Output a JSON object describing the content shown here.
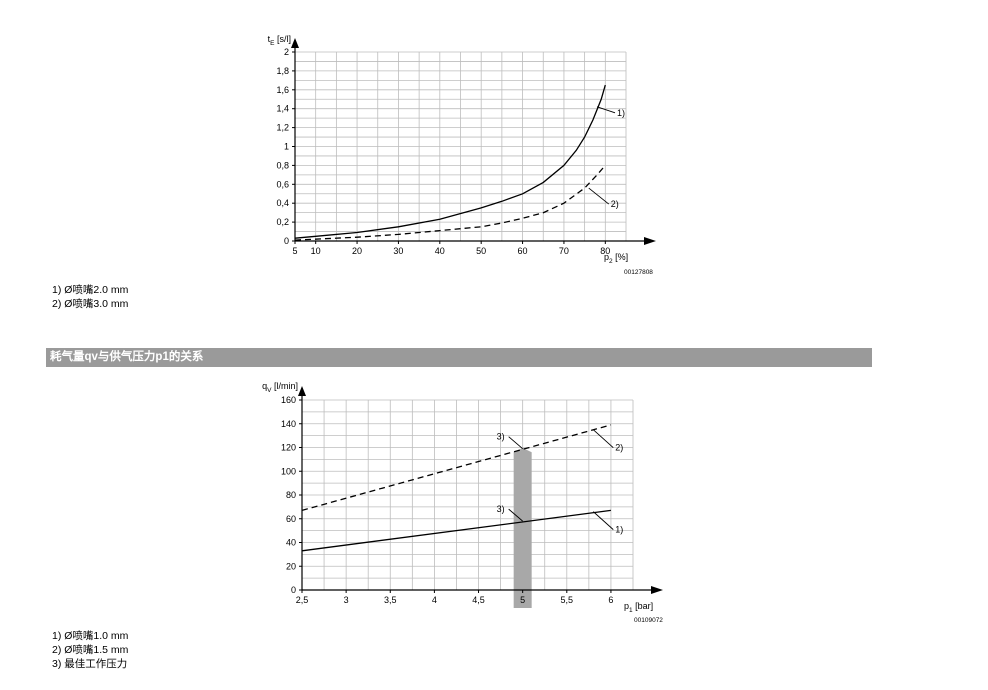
{
  "chart_data": [
    {
      "type": "line",
      "title": "",
      "ylabel_main": "t",
      "ylabel_sub": "E",
      "ylabel_unit": " [s/l]",
      "xlabel_main": "p",
      "xlabel_sub": "2",
      "xlabel_unit": " [%]",
      "ref_code": "00127808",
      "xlim": [
        5,
        85
      ],
      "ylim": [
        0,
        2
      ],
      "grid": true,
      "x_ticks": [
        5,
        10,
        20,
        30,
        40,
        50,
        60,
        70,
        80
      ],
      "y_ticks": [
        0,
        0.2,
        0.4,
        0.6,
        0.8,
        1,
        1.2,
        1.4,
        1.6,
        1.8,
        2
      ],
      "y_tick_labels": [
        "0",
        "0,2",
        "0,4",
        "0,6",
        "0,8",
        "1",
        "1,2",
        "1,4",
        "1,6",
        "1,8",
        "2"
      ],
      "series": [
        {
          "name": "1)",
          "style": "solid",
          "x": [
            5,
            10,
            20,
            30,
            40,
            50,
            55,
            60,
            65,
            70,
            73,
            75,
            77,
            79,
            80
          ],
          "y": [
            0.03,
            0.05,
            0.09,
            0.15,
            0.23,
            0.35,
            0.42,
            0.5,
            0.62,
            0.8,
            0.96,
            1.1,
            1.28,
            1.5,
            1.65
          ]
        },
        {
          "name": "2)",
          "style": "dashed",
          "x": [
            5,
            20,
            30,
            40,
            50,
            55,
            60,
            65,
            70,
            75,
            78,
            80
          ],
          "y": [
            0.01,
            0.04,
            0.07,
            0.11,
            0.15,
            0.19,
            0.24,
            0.3,
            0.4,
            0.56,
            0.7,
            0.8
          ]
        }
      ],
      "callouts": [
        {
          "label": "1)",
          "at": [
            78,
            1.42
          ]
        },
        {
          "label": "2)",
          "at": [
            76,
            0.56
          ]
        }
      ]
    },
    {
      "type": "line",
      "title": "",
      "ylabel_main": "q",
      "ylabel_sub": "V",
      "ylabel_unit": " [l/min]",
      "xlabel_main": "p",
      "xlabel_sub": "1",
      "xlabel_unit": " [bar]",
      "ref_code": "00109072",
      "xlim": [
        2.5,
        6.25
      ],
      "ylim": [
        0,
        160
      ],
      "grid": true,
      "x_ticks": [
        2.5,
        3,
        3.5,
        4,
        4.5,
        5,
        5.5,
        6
      ],
      "x_tick_labels": [
        "2,5",
        "3",
        "3,5",
        "4",
        "4,5",
        "5",
        "5,5",
        "6"
      ],
      "y_ticks": [
        0,
        20,
        40,
        60,
        80,
        100,
        120,
        140,
        160
      ],
      "y_tick_labels": [
        "0",
        "20",
        "40",
        "60",
        "80",
        "100",
        "120",
        "140",
        "160"
      ],
      "series": [
        {
          "name": "1)",
          "style": "solid",
          "x": [
            2.5,
            6
          ],
          "y": [
            33,
            67
          ]
        },
        {
          "name": "2)",
          "style": "dashed",
          "x": [
            2.5,
            6
          ],
          "y": [
            67,
            139
          ]
        }
      ],
      "optimal_pressure": 5,
      "callouts": [
        {
          "label": "1)",
          "at": [
            5.8,
            66
          ]
        },
        {
          "label": "2)",
          "at": [
            5.8,
            135
          ]
        },
        {
          "label": "3)",
          "at": [
            5,
            119
          ]
        },
        {
          "label": "3)",
          "at": [
            5,
            58
          ]
        }
      ]
    }
  ],
  "legend1": [
    "1) Ø喷嘴2.0 mm",
    "2) Ø喷嘴3.0 mm"
  ],
  "section_title": "耗气量qv与供气压力p1的关系",
  "legend2": [
    "1) Ø喷嘴1.0 mm",
    "2) Ø喷嘴1.5 mm",
    "3) 最佳工作压力"
  ]
}
